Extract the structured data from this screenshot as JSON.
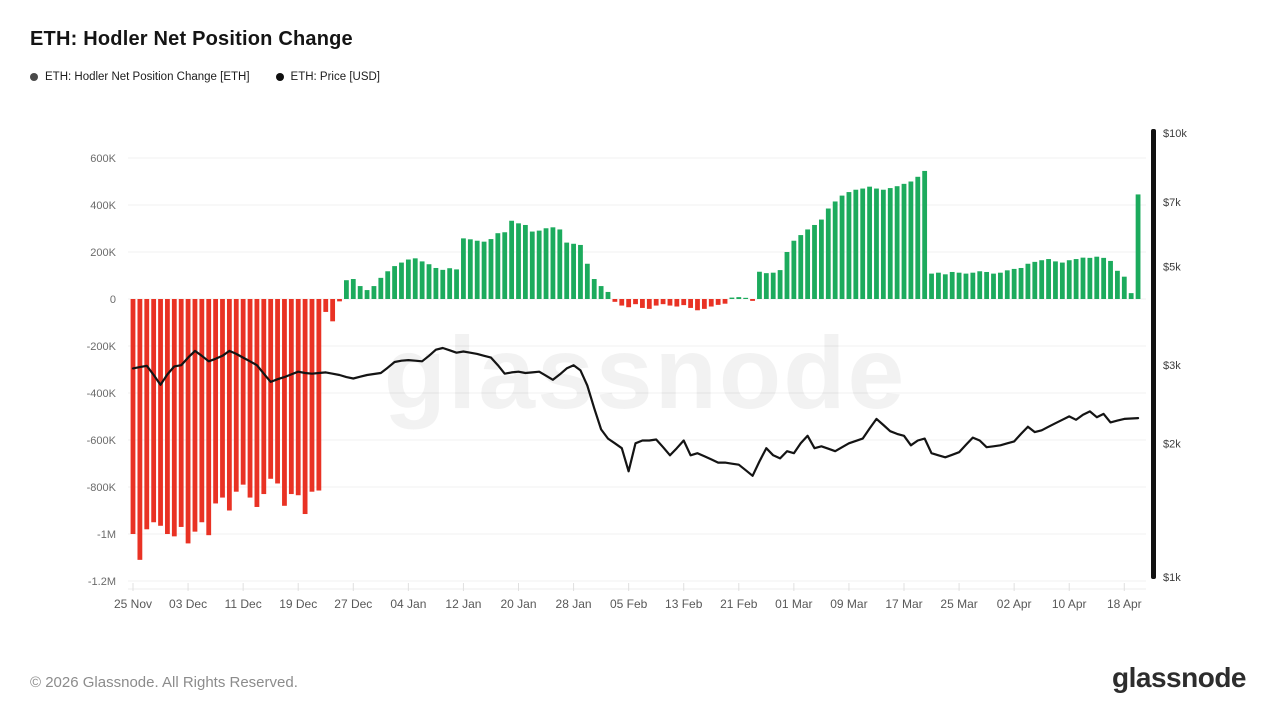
{
  "header": {
    "title": "ETH: Hodler Net Position Change"
  },
  "legend": {
    "items": [
      {
        "label": "ETH: Hodler Net Position Change [ETH]",
        "dot_color": "#4a4a4a"
      },
      {
        "label": "ETH: Price [USD]",
        "dot_color": "#0f0f0f"
      }
    ]
  },
  "watermark": {
    "text": "glassnode"
  },
  "footer": {
    "copyright": "© 2026 Glassnode. All Rights Reserved.",
    "logo_text": "glassnode"
  },
  "chart_data": {
    "type": "bar+line",
    "grid": true,
    "grid_color": "#f0f0f0",
    "x_tick_labels": [
      {
        "label": "25 Nov",
        "index": 0
      },
      {
        "label": "03 Dec",
        "index": 8
      },
      {
        "label": "11 Dec",
        "index": 16
      },
      {
        "label": "19 Dec",
        "index": 24
      },
      {
        "label": "27 Dec",
        "index": 32
      },
      {
        "label": "04 Jan",
        "index": 40
      },
      {
        "label": "12 Jan",
        "index": 48
      },
      {
        "label": "20 Jan",
        "index": 56
      },
      {
        "label": "28 Jan",
        "index": 64
      },
      {
        "label": "05 Feb",
        "index": 72
      },
      {
        "label": "13 Feb",
        "index": 80
      },
      {
        "label": "21 Feb",
        "index": 88
      },
      {
        "label": "01 Mar",
        "index": 96
      },
      {
        "label": "09 Mar",
        "index": 104
      },
      {
        "label": "17 Mar",
        "index": 112
      },
      {
        "label": "25 Mar",
        "index": 120
      },
      {
        "label": "02 Apr",
        "index": 128
      },
      {
        "label": "10 Apr",
        "index": 136
      },
      {
        "label": "18 Apr",
        "index": 144
      }
    ],
    "left_axis": {
      "unit": "ETH, values in thousands (K)",
      "range_thousands": [
        -1200,
        700
      ],
      "ticks": [
        {
          "label": "600K",
          "value": 600
        },
        {
          "label": "400K",
          "value": 400
        },
        {
          "label": "200K",
          "value": 200
        },
        {
          "label": "0",
          "value": 0
        },
        {
          "label": "-200K",
          "value": -200
        },
        {
          "label": "-400K",
          "value": -400
        },
        {
          "label": "-600K",
          "value": -600
        },
        {
          "label": "-800K",
          "value": -800
        },
        {
          "label": "-1M",
          "value": -1000
        },
        {
          "label": "-1.2M",
          "value": -1200
        }
      ]
    },
    "right_axis": {
      "unit": "USD",
      "scale": "log",
      "range_usd": [
        1000,
        10000
      ],
      "ticks": [
        {
          "label": "$10k",
          "value": 10000
        },
        {
          "label": "$7k",
          "value": 7000
        },
        {
          "label": "$5k",
          "value": 5000
        },
        {
          "label": "$3k",
          "value": 3000
        },
        {
          "label": "$2k",
          "value": 2000
        },
        {
          "label": "$1k",
          "value": 1000
        }
      ]
    },
    "series": [
      {
        "name": "ETH: Hodler Net Position Change [ETH]",
        "type": "bar",
        "axis": "left",
        "values_unit": "thousand ETH per day",
        "color_positive": "#1cab5d",
        "color_negative": "#e93224",
        "values": [
          -1000,
          -1110,
          -980,
          -950,
          -965,
          -1000,
          -1010,
          -970,
          -1040,
          -990,
          -950,
          -1005,
          -870,
          -845,
          -900,
          -820,
          -790,
          -845,
          -885,
          -830,
          -765,
          -785,
          -880,
          -830,
          -835,
          -915,
          -820,
          -815,
          -55,
          -95,
          -10,
          80,
          85,
          55,
          38,
          55,
          90,
          118,
          140,
          155,
          168,
          173,
          160,
          148,
          132,
          124,
          131,
          126,
          258,
          254,
          248,
          244,
          255,
          280,
          284,
          333,
          322,
          315,
          287,
          291,
          301,
          305,
          296,
          240,
          235,
          230,
          150,
          85,
          55,
          30,
          -12,
          -28,
          -35,
          -22,
          -38,
          -42,
          -28,
          -22,
          -28,
          -32,
          -26,
          -38,
          -48,
          -42,
          -32,
          -25,
          -20,
          6,
          8,
          5,
          -8,
          116,
          110,
          112,
          123,
          200,
          248,
          272,
          296,
          315,
          338,
          385,
          415,
          440,
          455,
          465,
          470,
          478,
          470,
          465,
          472,
          480,
          490,
          500,
          520,
          545,
          108,
          112,
          105,
          115,
          112,
          108,
          112,
          118,
          115,
          108,
          112,
          122,
          128,
          132,
          150,
          158,
          165,
          170,
          160,
          155,
          165,
          170,
          176,
          175,
          180,
          175,
          162,
          120,
          95,
          25,
          445
        ]
      },
      {
        "name": "ETH: Price [USD]",
        "type": "line",
        "axis": "right",
        "values_unit": "USD",
        "color": "#141414",
        "values": [
          2950,
          2970,
          2990,
          2850,
          2710,
          2860,
          2980,
          3000,
          3120,
          3230,
          3150,
          3060,
          3100,
          3150,
          3230,
          3180,
          3120,
          3060,
          3000,
          2870,
          2750,
          2790,
          2820,
          2860,
          2900,
          2880,
          2870,
          2880,
          2890,
          2870,
          2850,
          2820,
          2800,
          2825,
          2850,
          2865,
          2880,
          2960,
          3050,
          3070,
          3080,
          3070,
          3060,
          3150,
          3250,
          3280,
          3240,
          3200,
          3220,
          3200,
          3180,
          3150,
          3120,
          3000,
          2870,
          2890,
          2900,
          2880,
          2890,
          2900,
          2840,
          2780,
          2860,
          2950,
          3000,
          2920,
          2700,
          2400,
          2150,
          2050,
          2000,
          1950,
          1730,
          2000,
          2030,
          2030,
          2040,
          1960,
          1880,
          1950,
          2030,
          1880,
          1900,
          1870,
          1840,
          1810,
          1810,
          1800,
          1790,
          1740,
          1690,
          1820,
          1950,
          1880,
          1850,
          1920,
          1900,
          2000,
          2080,
          1950,
          1970,
          1945,
          1920,
          1960,
          2000,
          2025,
          2050,
          2160,
          2270,
          2200,
          2130,
          2100,
          2080,
          1980,
          2030,
          2050,
          1900,
          1880,
          1860,
          1885,
          1910,
          1985,
          2060,
          2030,
          1960,
          1970,
          1980,
          2000,
          2020,
          2100,
          2180,
          2120,
          2140,
          2180,
          2220,
          2260,
          2300,
          2260,
          2320,
          2360,
          2290,
          2330,
          2230,
          2250,
          2270,
          2275,
          2280
        ]
      }
    ]
  }
}
